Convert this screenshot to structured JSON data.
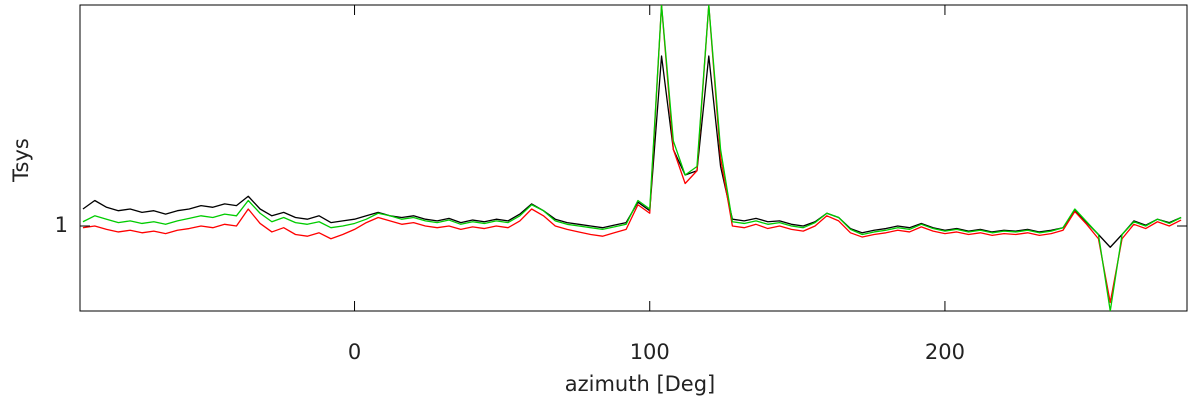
{
  "chart_data": {
    "type": "line",
    "xlabel": "azimuth [Deg]",
    "ylabel": "Tsys",
    "x": [
      -92,
      -88,
      -84,
      -80,
      -76,
      -72,
      -68,
      -64,
      -60,
      -56,
      -52,
      -48,
      -44,
      -40,
      -36,
      -32,
      -28,
      -24,
      -20,
      -16,
      -12,
      -8,
      -4,
      0,
      4,
      8,
      12,
      16,
      20,
      24,
      28,
      32,
      36,
      40,
      44,
      48,
      52,
      56,
      60,
      64,
      68,
      72,
      76,
      80,
      84,
      88,
      92,
      96,
      100,
      104,
      108,
      112,
      116,
      120,
      124,
      128,
      132,
      136,
      140,
      144,
      148,
      152,
      156,
      160,
      164,
      168,
      172,
      176,
      180,
      184,
      188,
      192,
      196,
      200,
      204,
      208,
      212,
      216,
      220,
      224,
      228,
      232,
      236,
      240,
      244,
      248,
      252,
      256,
      260,
      264,
      268,
      272,
      276,
      280
    ],
    "series": [
      {
        "color": "#000000",
        "values": [
          1.02,
          1.03,
          1.022,
          1.018,
          1.02,
          1.016,
          1.018,
          1.014,
          1.018,
          1.02,
          1.024,
          1.022,
          1.026,
          1.024,
          1.035,
          1.02,
          1.012,
          1.016,
          1.01,
          1.008,
          1.012,
          1.004,
          1.006,
          1.008,
          1.012,
          1.016,
          1.012,
          1.01,
          1.012,
          1.008,
          1.006,
          1.009,
          1.004,
          1.007,
          1.005,
          1.008,
          1.006,
          1.014,
          1.026,
          1.018,
          1.008,
          1.004,
          1.002,
          1.0,
          0.998,
          1.001,
          1.004,
          1.028,
          1.018,
          1.2,
          1.09,
          1.06,
          1.065,
          1.2,
          1.07,
          1.008,
          1.006,
          1.009,
          1.005,
          1.006,
          1.002,
          1.0,
          1.005,
          1.015,
          1.01,
          0.997,
          0.992,
          0.995,
          0.997,
          1.0,
          0.998,
          1.003,
          0.998,
          0.995,
          0.997,
          0.994,
          0.996,
          0.993,
          0.995,
          0.994,
          0.996,
          0.993,
          0.995,
          0.998,
          1.018,
          1.004,
          0.99,
          0.975,
          0.99,
          1.006,
          1.001,
          1.008,
          1.004,
          1.01
        ]
      },
      {
        "color": "#ff0000",
        "values": [
          0.998,
          1.0,
          0.996,
          0.993,
          0.995,
          0.992,
          0.994,
          0.991,
          0.995,
          0.997,
          1.0,
          0.998,
          1.002,
          1.0,
          1.02,
          1.003,
          0.993,
          0.998,
          0.99,
          0.988,
          0.992,
          0.985,
          0.99,
          0.996,
          1.004,
          1.01,
          1.006,
          1.002,
          1.004,
          1.0,
          0.998,
          1.0,
          0.996,
          0.999,
          0.997,
          1.0,
          0.998,
          1.006,
          1.02,
          1.012,
          1.0,
          0.996,
          0.993,
          0.99,
          0.988,
          0.992,
          0.996,
          1.025,
          1.015,
          1.26,
          1.09,
          1.05,
          1.065,
          1.26,
          1.08,
          1.0,
          0.998,
          1.002,
          0.997,
          1.0,
          0.996,
          0.994,
          1.0,
          1.012,
          1.006,
          0.992,
          0.987,
          0.99,
          0.992,
          0.995,
          0.993,
          0.999,
          0.994,
          0.991,
          0.993,
          0.99,
          0.992,
          0.989,
          0.991,
          0.99,
          0.992,
          0.989,
          0.991,
          0.995,
          1.017,
          1.002,
          0.985,
          0.91,
          0.985,
          1.002,
          0.997,
          1.005,
          1.0,
          1.007
        ]
      },
      {
        "color": "#00cc00",
        "values": [
          1.005,
          1.012,
          1.008,
          1.004,
          1.006,
          1.003,
          1.005,
          1.002,
          1.006,
          1.009,
          1.012,
          1.01,
          1.014,
          1.012,
          1.03,
          1.015,
          1.005,
          1.01,
          1.004,
          1.002,
          1.005,
          0.998,
          1.0,
          1.003,
          1.008,
          1.015,
          1.012,
          1.008,
          1.01,
          1.006,
          1.004,
          1.007,
          1.002,
          1.005,
          1.003,
          1.006,
          1.004,
          1.012,
          1.025,
          1.018,
          1.006,
          1.002,
          1.0,
          0.998,
          0.996,
          0.999,
          1.002,
          1.03,
          1.02,
          1.26,
          1.1,
          1.06,
          1.07,
          1.26,
          1.09,
          1.005,
          1.003,
          1.006,
          1.002,
          1.004,
          1.0,
          0.998,
          1.004,
          1.015,
          1.01,
          0.996,
          0.99,
          0.993,
          0.995,
          0.998,
          0.996,
          1.002,
          0.997,
          0.994,
          0.996,
          0.993,
          0.995,
          0.992,
          0.994,
          0.993,
          0.995,
          0.992,
          0.994,
          0.998,
          1.02,
          1.005,
          0.99,
          0.9,
          0.99,
          1.005,
          1.0,
          1.008,
          1.003,
          1.01
        ]
      }
    ],
    "xlim": [
      -93,
      282
    ],
    "xticks": [
      0,
      100,
      200
    ],
    "ylim": [
      0.9,
      1.26
    ],
    "yticks": [
      1
    ]
  }
}
